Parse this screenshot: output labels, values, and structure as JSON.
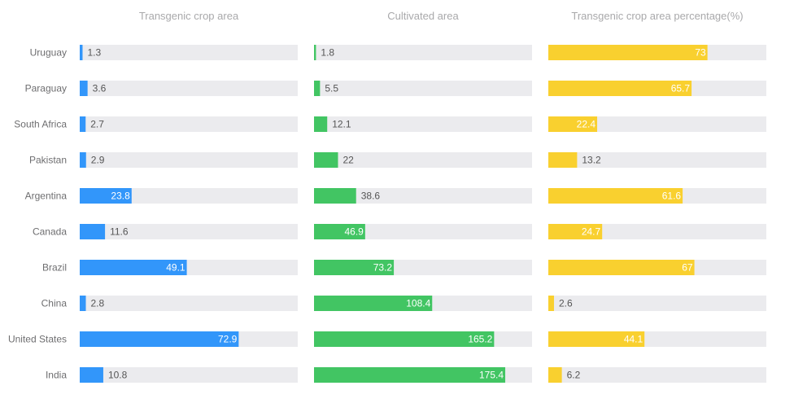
{
  "chart_data": {
    "type": "bar",
    "orientation": "horizontal",
    "categories": [
      "Uruguay",
      "Paraguay",
      "South Africa",
      "Pakistan",
      "Argentina",
      "Canada",
      "Brazil",
      "China",
      "United States",
      "India"
    ],
    "series": [
      {
        "name": "Transgenic crop area",
        "color": "#3296fa",
        "values": [
          1.3,
          3.6,
          2.7,
          2.9,
          23.8,
          11.6,
          49.1,
          2.8,
          72.9,
          10.8
        ],
        "xlim": [
          0,
          100
        ]
      },
      {
        "name": "Cultivated area",
        "color": "#42c563",
        "values": [
          1.8,
          5.5,
          12.1,
          22,
          38.6,
          46.9,
          73.2,
          108.4,
          165.2,
          175.4
        ],
        "xlim": [
          0,
          200
        ]
      },
      {
        "name": "Transgenic crop area percentage(%)",
        "color": "#f9d02f",
        "values": [
          73,
          65.7,
          22.4,
          13.2,
          61.6,
          24.7,
          67,
          2.6,
          44.1,
          6.2
        ],
        "xlim": [
          0,
          100
        ]
      }
    ],
    "track_color": "#ebebee",
    "grid": false,
    "legend": "none"
  }
}
